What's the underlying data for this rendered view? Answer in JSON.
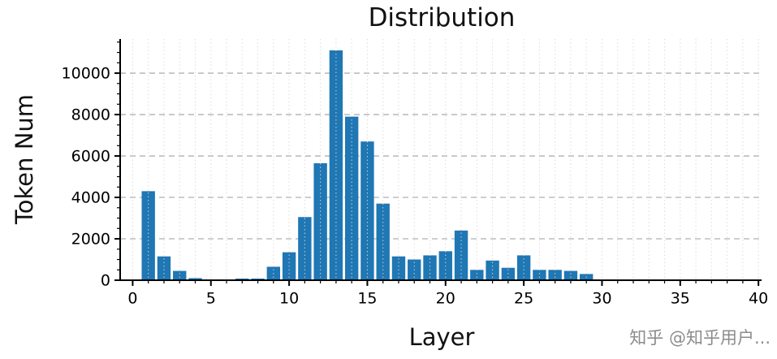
{
  "watermark": {
    "text": "知乎 @知乎用户..."
  },
  "chart_data": {
    "type": "bar",
    "title": "Distribution",
    "xlabel": "Layer",
    "ylabel": "Token Num",
    "x": [
      1,
      2,
      3,
      4,
      5,
      6,
      7,
      8,
      9,
      10,
      11,
      12,
      13,
      14,
      15,
      16,
      17,
      18,
      19,
      20,
      21,
      22,
      23,
      24,
      25,
      26,
      27,
      28,
      29
    ],
    "values": [
      4300,
      1150,
      450,
      100,
      30,
      0,
      80,
      80,
      650,
      1350,
      3050,
      5650,
      11100,
      7900,
      6700,
      3700,
      1150,
      1000,
      1200,
      1400,
      2400,
      500,
      950,
      600,
      1200,
      500,
      500,
      450,
      300
    ],
    "xlim": [
      -0.8,
      40.2
    ],
    "ylim": [
      0,
      11650
    ],
    "xticks": [
      0,
      5,
      10,
      15,
      20,
      25,
      30,
      35,
      40
    ],
    "yticks": [
      0,
      2000,
      4000,
      6000,
      8000,
      10000
    ],
    "bar_width": 0.85,
    "bar_color": "#1f77b4",
    "axis_color": "#000000",
    "grid": {
      "horizontal": "dashed",
      "vertical": "dotted",
      "h_color": "#b0b0b0",
      "v_color": "#d9d9d9"
    },
    "legend": null
  }
}
